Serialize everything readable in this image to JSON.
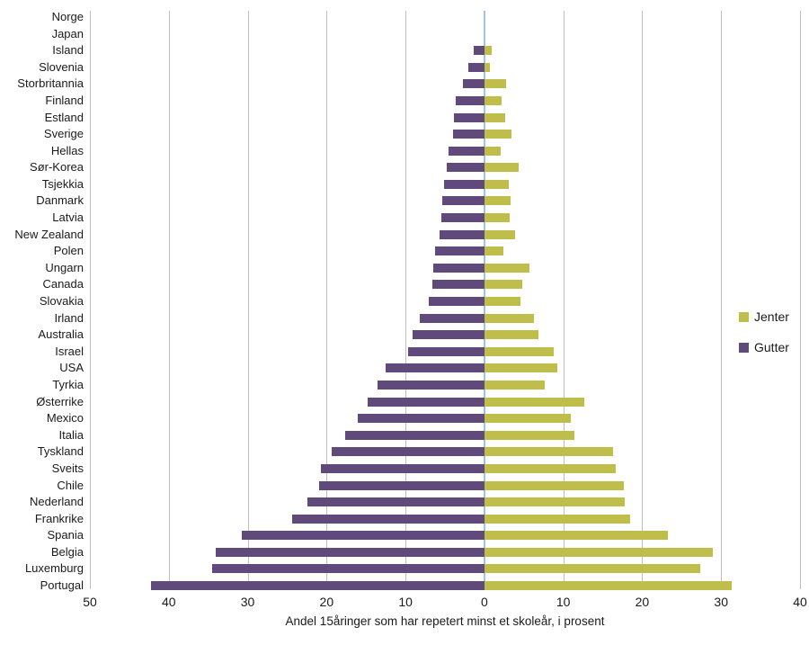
{
  "chart_data": {
    "type": "bar",
    "variant": "tornado",
    "title": "",
    "xlabel": "Andel 15åringer som har repetert minst et skoleår, i prosent",
    "ylabel": "",
    "grid": true,
    "legend_position": "right",
    "colors": {
      "jenter": "#bfbe4a",
      "gutter": "#604a7b",
      "gridline": "#bfbfbf",
      "zero_line": "#9dc3e6",
      "text": "#1a1a1a"
    },
    "x_axis": {
      "left_max": 50,
      "right_max": 40,
      "tick_step": 10,
      "tick_labels": [
        "50",
        "40",
        "30",
        "20",
        "10",
        "0",
        "10",
        "20",
        "30",
        "40"
      ]
    },
    "categories": [
      "Norge",
      "Japan",
      "Island",
      "Slovenia",
      "Storbritannia",
      "Finland",
      "Estland",
      "Sverige",
      "Hellas",
      "Sør-Korea",
      "Tsjekkia",
      "Danmark",
      "Latvia",
      "New Zealand",
      "Polen",
      "Ungarn",
      "Canada",
      "Slovakia",
      "Irland",
      "Australia",
      "Israel",
      "USA",
      "Tyrkia",
      "Østerrike",
      "Mexico",
      "Italia",
      "Tyskland",
      "Sveits",
      "Chile",
      "Nederland",
      "Frankrike",
      "Spania",
      "Belgia",
      "Luxemburg",
      "Portugal"
    ],
    "series": [
      {
        "name": "Jenter",
        "side": "right",
        "color": "#bfbe4a",
        "values": [
          0,
          0,
          0.9,
          0.7,
          2.7,
          2.2,
          2.6,
          3.4,
          2.1,
          4.3,
          3.1,
          3.3,
          3.2,
          3.9,
          2.4,
          5.7,
          4.8,
          4.6,
          6.3,
          6.8,
          8.8,
          9.2,
          7.6,
          12.7,
          11,
          11.4,
          16.3,
          16.7,
          17.7,
          17.8,
          18.5,
          23.2,
          29,
          27.3,
          31.3
        ]
      },
      {
        "name": "Gutter",
        "side": "left",
        "color": "#604a7b",
        "values": [
          0,
          0,
          1.4,
          2,
          2.7,
          3.6,
          3.9,
          4,
          4.5,
          4.8,
          5.1,
          5.3,
          5.5,
          5.7,
          6.2,
          6.5,
          6.6,
          7,
          8.2,
          9.1,
          9.7,
          12.5,
          13.6,
          14.8,
          16.1,
          17.6,
          19.3,
          20.7,
          21,
          22.4,
          24.4,
          30.7,
          34,
          34.5,
          42.3
        ]
      }
    ]
  }
}
